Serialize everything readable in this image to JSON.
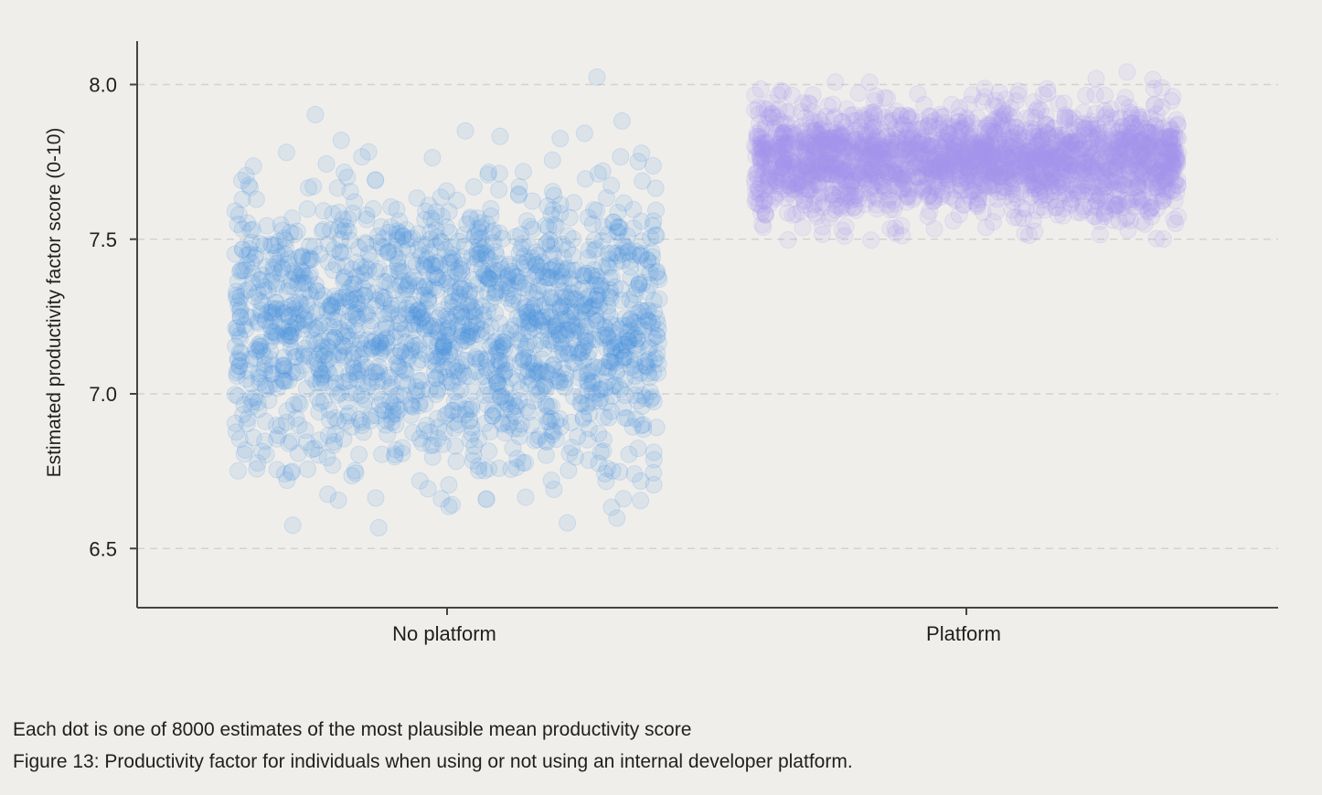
{
  "chart_data": {
    "type": "scatter",
    "ylabel": "Estimated productivity factor score (0-10)",
    "xlabel": "",
    "title": "",
    "categories": [
      "No platform",
      "Platform"
    ],
    "ylim": [
      6.3,
      8.15
    ],
    "yticks": [
      6.5,
      7.0,
      7.5,
      8.0
    ],
    "ytick_labels": [
      "6.5",
      "7.0",
      "7.5",
      "8.0"
    ],
    "grid": "horizontal dashed",
    "series": [
      {
        "category": "No platform",
        "color": "#4a90e2",
        "center": 7.22,
        "core_range": [
          6.83,
          7.62
        ],
        "full_range": [
          6.38,
          8.06
        ]
      },
      {
        "category": "Platform",
        "color": "#a594f0",
        "center": 7.76,
        "core_range": [
          7.6,
          7.9
        ],
        "full_range": [
          7.49,
          8.06
        ]
      }
    ]
  },
  "captions": {
    "note": "Each dot is one of 8000 estimates of the most plausible mean productivity score",
    "figure": "Figure 13: Productivity factor for individuals when using or not using an internal developer platform."
  }
}
